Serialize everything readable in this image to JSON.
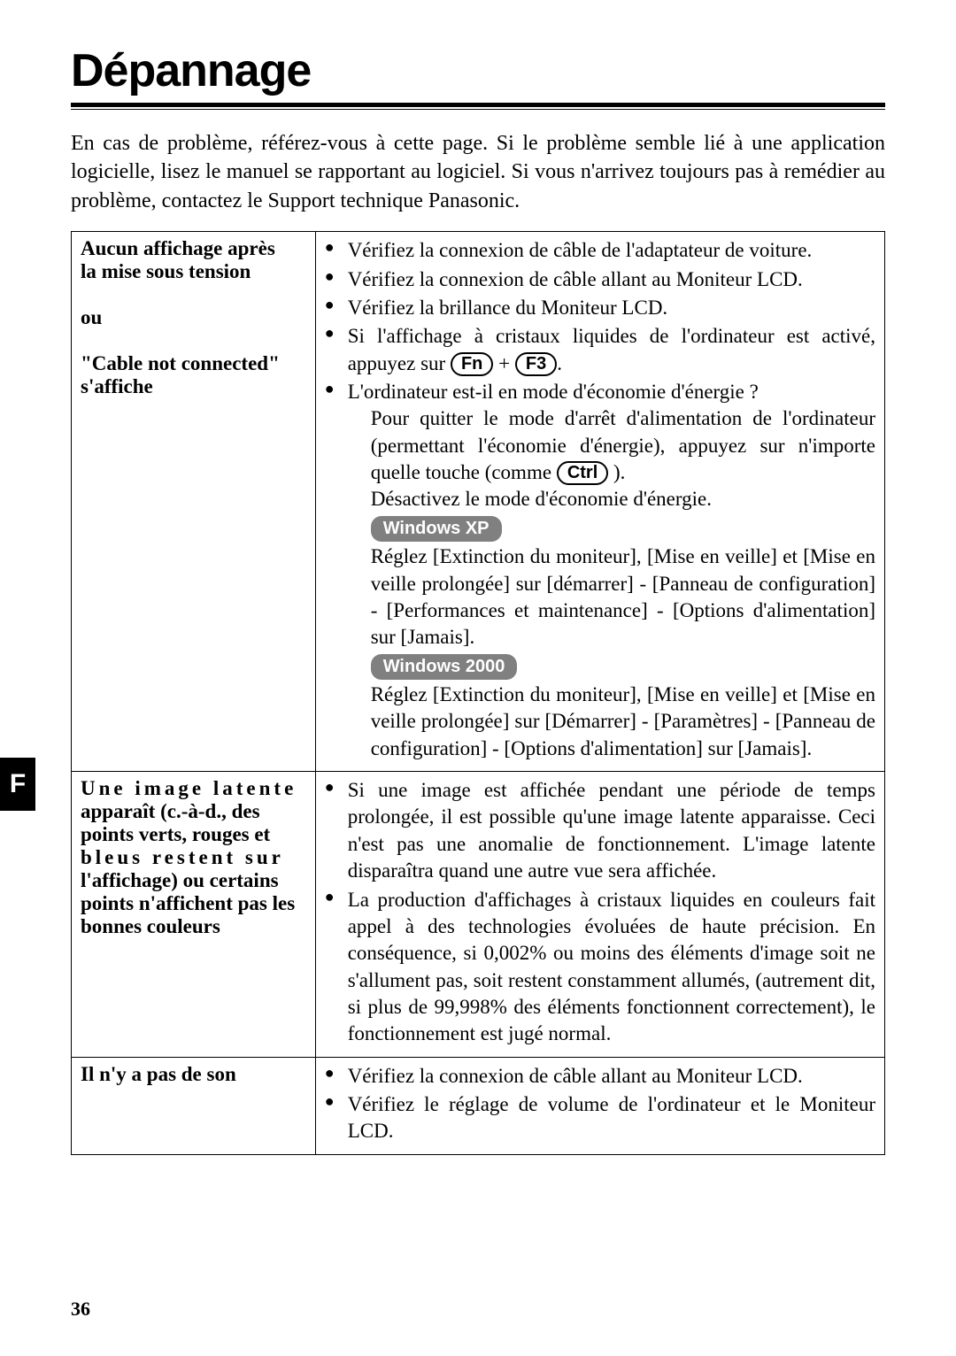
{
  "lang_tab": "F",
  "title": "Dépannage",
  "intro": "En cas de problème, référez-vous à cette page. Si le problème semble lié à une application logicielle, lisez le manuel se rapportant au logiciel. Si vous n'arrivez toujours pas à remédier au problème, contactez le Support technique Panasonic.",
  "page_number": "36",
  "keys": {
    "fn": "Fn",
    "f3": "F3",
    "ctrl": "Ctrl"
  },
  "os": {
    "xp": "Windows XP",
    "w2k": "Windows 2000"
  },
  "rows": [
    {
      "problem": {
        "l1": "Aucun affichage après",
        "l2": "la mise sous tension",
        "l3": "ou",
        "l4": "\"Cable not connected\"",
        "l5": "s'affiche"
      },
      "bullets": [
        "Vérifiez la connexion de câble de l'adaptateur de voiture.",
        "Vérifiez la connexion de câble allant au Moniteur LCD.",
        "Vérifiez la brillance du Moniteur LCD."
      ],
      "b4_pre": "Si l'affichage à cristaux liquides de l'ordinateur est activé, appuyez sur ",
      "b5_pre": "L'ordinateur est-il en mode d'économie d'énergie ?",
      "b5_sub1": "Pour quitter le mode d'arrêt d'alimentation de l'ordinateur (permettant l'économie d'énergie), appuyez sur n'importe quelle touche (comme ",
      "b5_sub1_post": " ).",
      "b5_sub2": "Désactivez le mode d'économie d'énergie.",
      "xp_text": "Réglez [Extinction du moniteur], [Mise en veille] et [Mise en veille prolongée] sur [démarrer] - [Panneau de configuration] - [Performances et maintenance] - [Options d'alimentation] sur [Jamais].",
      "w2k_text": "Réglez [Extinction du moniteur], [Mise en veille] et [Mise en veille prolongée] sur [Démarrer] - [Paramètres] - [Panneau de configuration] - [Options d'alimentation] sur [Jamais]."
    },
    {
      "problem": {
        "l1": "Une image latente",
        "l2": "apparaît (c.-à-d., des",
        "l3": "points verts, rouges et",
        "l4": "bleus restent sur",
        "l5": "l'affichage) ou certains",
        "l6": "points n'affichent pas les",
        "l7": "bonnes couleurs"
      },
      "bullets": [
        "Si une image est affichée pendant une période de temps prolongée, il est possible qu'une image latente apparaisse. Ceci n'est pas une anomalie de fonctionnement. L'image latente disparaîtra quand une autre vue sera affichée.",
        "La production d'affichages à cristaux liquides en couleurs fait appel à des technologies évoluées de haute précision. En conséquence, si 0,002% ou moins des éléments d'image soit ne s'allument pas, soit restent constamment allumés, (autrement dit, si plus de 99,998% des éléments fonctionnent correctement), le fonctionnement est jugé normal."
      ]
    },
    {
      "problem": {
        "l1": "Il n'y a pas de son"
      },
      "bullets": [
        "Vérifiez la connexion de câble allant au Moniteur LCD.",
        "Vérifiez le réglage de volume de l'ordinateur et le Moniteur LCD."
      ]
    }
  ]
}
